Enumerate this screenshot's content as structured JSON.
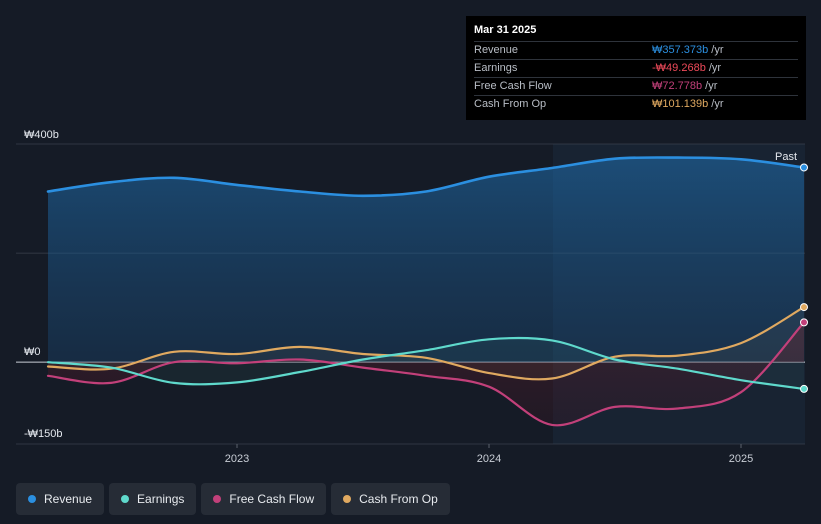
{
  "chart_data": {
    "type": "line",
    "title": "",
    "currency": "₩",
    "ylim": [
      -150,
      400
    ],
    "y_tick_labels": [
      "₩400b",
      "₩0",
      "-₩150b"
    ],
    "x_tick_labels": [
      "2023",
      "2024",
      "2025"
    ],
    "x_ticks": [
      2023.0,
      2024.0,
      2025.0
    ],
    "past_label": "Past",
    "x": [
      2022.25,
      2022.5,
      2022.75,
      2023.0,
      2023.25,
      2023.5,
      2023.75,
      2024.0,
      2024.25,
      2024.5,
      2024.75,
      2025.0,
      2025.25
    ],
    "series": [
      {
        "name": "Revenue",
        "color": "#2b8fe0",
        "values": [
          313,
          330,
          338,
          325,
          313,
          305,
          313,
          340,
          356,
          373,
          375,
          372,
          357
        ]
      },
      {
        "name": "Earnings",
        "color": "#5fd9cc",
        "values": [
          0,
          -10,
          -38,
          -37,
          -18,
          5,
          22,
          42,
          40,
          5,
          -12,
          -33,
          -49
        ]
      },
      {
        "name": "Free Cash Flow",
        "color": "#c2407a",
        "values": [
          -25,
          -38,
          0,
          -2,
          5,
          -10,
          -25,
          -45,
          -115,
          -82,
          -85,
          -55,
          73
        ]
      },
      {
        "name": "Cash From Op",
        "color": "#e0a960",
        "values": [
          -8,
          -12,
          19,
          15,
          28,
          15,
          8,
          -20,
          -30,
          10,
          12,
          35,
          101
        ]
      }
    ],
    "tooltip": {
      "date": "Mar 31 2025",
      "unit": "/yr",
      "rows": [
        {
          "label": "Revenue",
          "value": "₩357.373b",
          "color": "#2b8fe0"
        },
        {
          "label": "Earnings",
          "value": "-₩49.268b",
          "color": "#ef4a5a"
        },
        {
          "label": "Free Cash Flow",
          "value": "₩72.778b",
          "color": "#c2407a"
        },
        {
          "label": "Cash From Op",
          "value": "₩101.139b",
          "color": "#e0a960"
        }
      ]
    },
    "legend": [
      {
        "label": "Revenue",
        "color": "#2b8fe0"
      },
      {
        "label": "Earnings",
        "color": "#5fd9cc"
      },
      {
        "label": "Free Cash Flow",
        "color": "#c2407a"
      },
      {
        "label": "Cash From Op",
        "color": "#e0a960"
      }
    ]
  }
}
